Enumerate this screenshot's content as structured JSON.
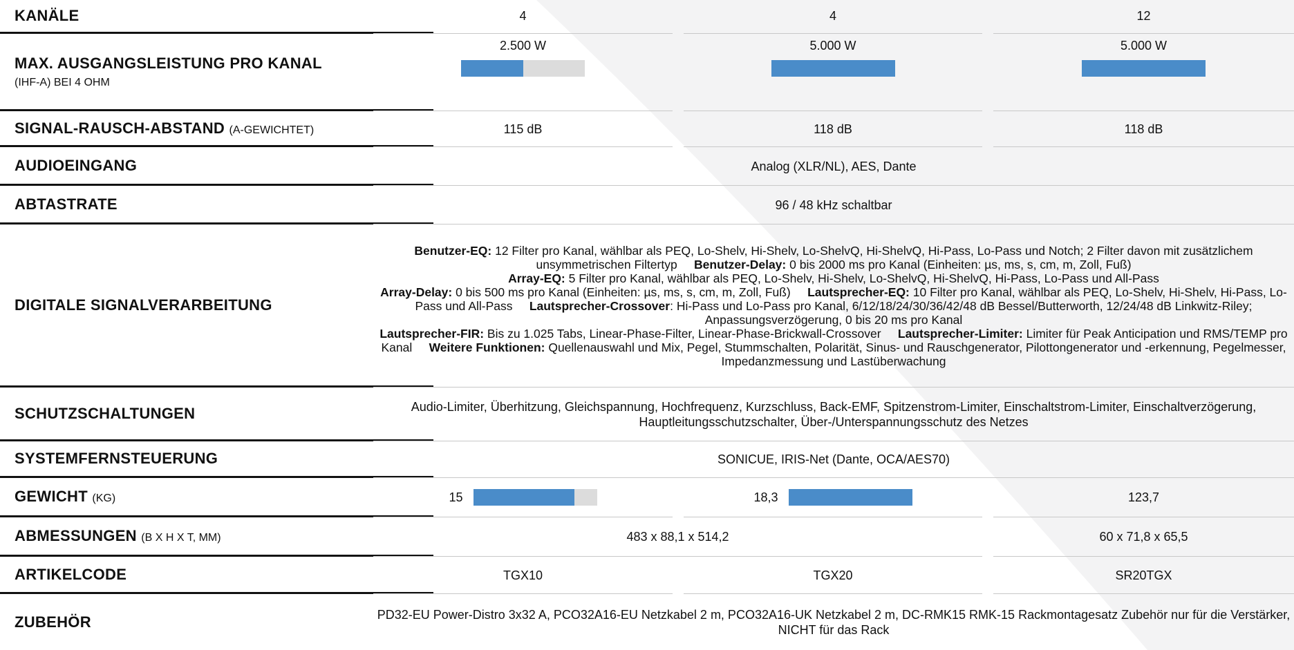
{
  "table": {
    "bar_color": "#4a8cc9",
    "track_color": "#dcdcdc",
    "rows": [
      {
        "label": "KANÄLE",
        "cells": [
          {
            "text": "4"
          },
          {
            "text": "4"
          },
          {
            "text": "12"
          }
        ]
      },
      {
        "label": "MAX. AUSGANGSLEISTUNG PRO KANAL",
        "sub": "(IHF-A) BEI 4 OHM",
        "bar_position": "below",
        "cells": [
          {
            "text": "2.500 W",
            "value": 2500
          },
          {
            "text": "5.000 W",
            "value": 5000
          },
          {
            "text": "5.000 W",
            "value": 5000
          }
        ]
      },
      {
        "label": "SIGNAL-RAUSCH-ABSTAND",
        "note": "(A-GEWICHTET)",
        "cells": [
          {
            "text": "115 dB"
          },
          {
            "text": "118 dB"
          },
          {
            "text": "118 dB"
          }
        ]
      },
      {
        "label": "AUDIOEINGANG",
        "cells": [
          {
            "text": "Analog (XLR/NL), AES, Dante",
            "span": 3
          }
        ]
      },
      {
        "label": "ABTASTRATE",
        "cells": [
          {
            "text": "96 / 48 kHz schaltbar",
            "span": 3
          }
        ]
      },
      {
        "label": "DIGITALE SIGNALVERARBEITUNG",
        "cells": [
          {
            "span": 3,
            "paragraphs": [
              [
                {
                  "bold": true,
                  "text": "Benutzer-EQ:"
                },
                {
                  "text": " 12 Filter pro Kanal, wählbar als PEQ, Lo-Shelv, Hi-Shelv, Lo-ShelvQ, Hi-ShelvQ, Hi-Pass, Lo-Pass und Notch; 2 Filter davon mit zusätzlichem unsymmetrischen Filtertyp"
                },
                {
                  "bold": true,
                  "text": "Benutzer-Delay:"
                },
                {
                  "text": " 0 bis 2000 ms pro Kanal (Einheiten: µs, ms, s, cm, m, Zoll, Fuß)"
                }
              ],
              [
                {
                  "bold": true,
                  "text": "Array-EQ:"
                },
                {
                  "text": " 5 Filter pro Kanal, wählbar als PEQ, Lo-Shelv, Hi-Shelv, Lo-ShelvQ, Hi-ShelvQ, Hi-Pass, Lo-Pass und All-Pass"
                }
              ],
              [
                {
                  "bold": true,
                  "text": "Array-Delay:"
                },
                {
                  "text": " 0 bis 500 ms pro Kanal (Einheiten: µs, ms, s, cm, m, Zoll, Fuß)"
                },
                {
                  "bold": true,
                  "text": "Lautsprecher-EQ:"
                },
                {
                  "text": " 10 Filter pro Kanal, wählbar als PEQ, Lo-Shelv, Hi-Shelv, Hi-Pass, Lo-Pass und All-Pass"
                },
                {
                  "bold": true,
                  "text": "Lautsprecher-Crossover"
                },
                {
                  "text": ": Hi-Pass und Lo-Pass pro Kanal, 6/12/18/24/30/36/42/48 dB Bessel/Butterworth, 12/24/48 dB Linkwitz-Riley; Anpassungsverzögerung, 0 bis 20 ms pro Kanal"
                }
              ],
              [
                {
                  "bold": true,
                  "text": "Lautsprecher-FIR:"
                },
                {
                  "text": " Bis zu 1.025 Tabs, Linear-Phase-Filter, Linear-Phase-Brickwall-Crossover"
                },
                {
                  "bold": true,
                  "text": "Lautsprecher-Limiter:"
                },
                {
                  "text": " Limiter für Peak Anticipation und RMS/TEMP pro Kanal"
                },
                {
                  "bold": true,
                  "text": "Weitere Funktionen:"
                },
                {
                  "text": " Quellenauswahl und Mix, Pegel, Stummschalten, Polarität, Sinus- und Rauschgenerator, Pilottongenerator und -erkennung, Pegelmesser, Impedanzmessung und Lastüberwachung"
                }
              ]
            ]
          }
        ]
      },
      {
        "label": "SCHUTZSCHALTUNGEN",
        "cells": [
          {
            "text": "Audio-Limiter, Überhitzung, Gleichspannung, Hochfrequenz, Kurzschluss, Back-EMF, Spitzenstrom-Limiter, Einschaltstrom-Limiter, Einschaltverzögerung, Hauptleitungsschutzschalter, Über-/Unterspannungsschutz des Netzes",
            "span": 3
          }
        ]
      },
      {
        "label": "SYSTEMFERNSTEUERUNG",
        "cells": [
          {
            "text": "SONICUE, IRIS-Net (Dante, OCA/AES70)",
            "span": 3
          }
        ]
      },
      {
        "label": "GEWICHT",
        "note": "(KG)",
        "bar_position": "inline",
        "cells": [
          {
            "text": "15",
            "value": 15
          },
          {
            "text": "18,3",
            "value": 18.3
          },
          {
            "text": "123,7"
          }
        ]
      },
      {
        "label": "ABMESSUNGEN",
        "note": "(B X H X T, MM)",
        "cells": [
          {
            "text": "483 x 88,1 x 514,2",
            "span": 2
          },
          {
            "text": "60 x 71,8 x 65,5"
          }
        ]
      },
      {
        "label": "ARTIKELCODE",
        "cells": [
          {
            "text": "TGX10"
          },
          {
            "text": "TGX20"
          },
          {
            "text": "SR20TGX"
          }
        ]
      },
      {
        "label": "ZUBEHÖR",
        "cells": [
          {
            "text": "PD32-EU Power-Distro 3x32 A, PCO32A16-EU Netzkabel 2 m, PCO32A16-UK Netzkabel 2 m, DC-RMK15 RMK-15 Rackmontagesatz Zubehör nur für die Verstärker, NICHT für das Rack",
            "span": 3
          }
        ]
      }
    ]
  }
}
